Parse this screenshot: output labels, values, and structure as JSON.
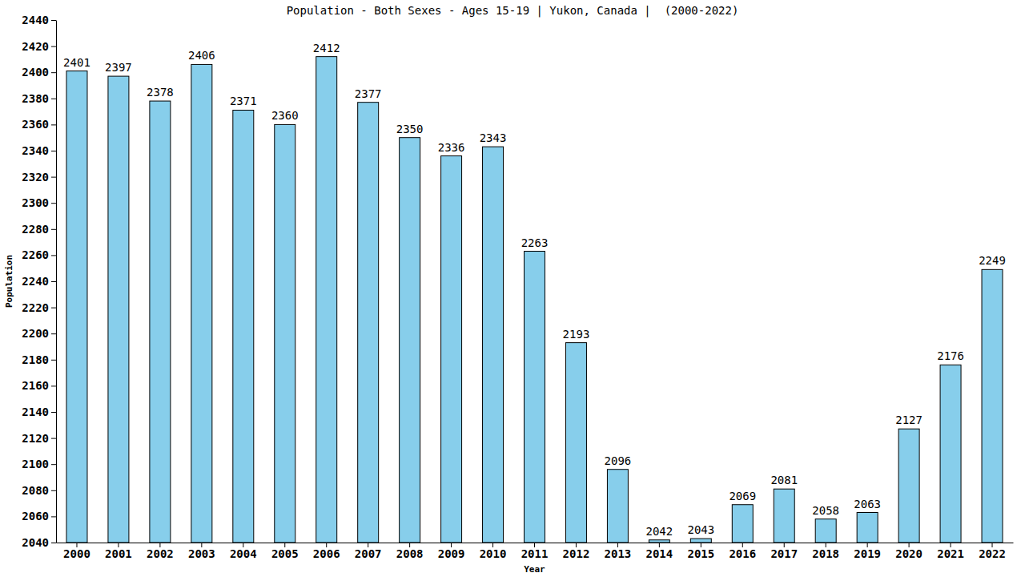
{
  "chart_data": {
    "type": "bar",
    "title": "Population - Both Sexes - Ages 15-19 | Yukon, Canada |  (2000-2022)",
    "x_label": "Year",
    "y_label": "Population",
    "categories": [
      "2000",
      "2001",
      "2002",
      "2003",
      "2004",
      "2005",
      "2006",
      "2007",
      "2008",
      "2009",
      "2010",
      "2011",
      "2012",
      "2013",
      "2014",
      "2015",
      "2016",
      "2017",
      "2018",
      "2019",
      "2020",
      "2021",
      "2022"
    ],
    "values": [
      2401,
      2397,
      2378,
      2406,
      2371,
      2360,
      2412,
      2377,
      2350,
      2336,
      2343,
      2263,
      2193,
      2096,
      2042,
      2043,
      2069,
      2081,
      2058,
      2063,
      2127,
      2176,
      2249
    ],
    "color": "#87ceeb",
    "ylim": [
      2040,
      2440
    ],
    "yticks": [
      2040,
      2060,
      2080,
      2100,
      2120,
      2140,
      2160,
      2180,
      2200,
      2220,
      2240,
      2260,
      2280,
      2300,
      2320,
      2340,
      2360,
      2380,
      2400,
      2420,
      2440
    ],
    "grid": false,
    "data_labels": true
  }
}
